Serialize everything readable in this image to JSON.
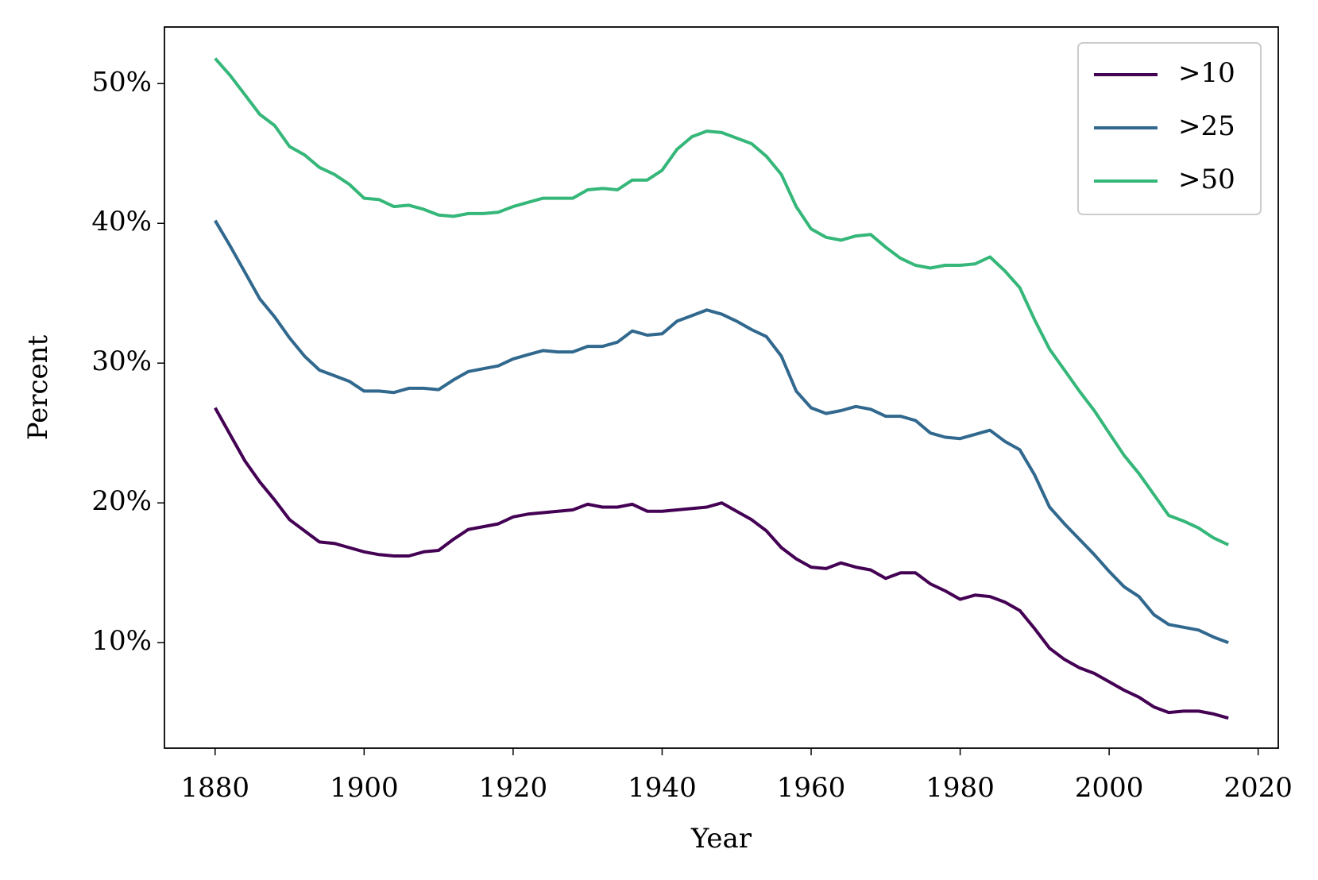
{
  "chart_data": {
    "type": "line",
    "xlabel": "Year",
    "ylabel": "Percent",
    "x": [
      1880,
      1882,
      1884,
      1886,
      1888,
      1890,
      1892,
      1894,
      1896,
      1898,
      1900,
      1902,
      1904,
      1906,
      1908,
      1910,
      1912,
      1914,
      1916,
      1918,
      1920,
      1922,
      1924,
      1926,
      1928,
      1930,
      1932,
      1934,
      1936,
      1938,
      1940,
      1942,
      1944,
      1946,
      1948,
      1950,
      1952,
      1954,
      1956,
      1958,
      1960,
      1962,
      1964,
      1966,
      1968,
      1970,
      1972,
      1974,
      1976,
      1978,
      1980,
      1982,
      1984,
      1986,
      1988,
      1990,
      1992,
      1994,
      1996,
      1998,
      2000,
      2002,
      2004,
      2006,
      2008,
      2010,
      2012,
      2014,
      2016
    ],
    "series": [
      {
        "name": ">10",
        "color": "#440154",
        "values": [
          26.8,
          24.9,
          23.0,
          21.5,
          20.2,
          18.8,
          18.0,
          17.2,
          17.1,
          16.8,
          16.5,
          16.3,
          16.2,
          16.2,
          16.5,
          16.6,
          17.4,
          18.1,
          18.3,
          18.5,
          19.0,
          19.2,
          19.3,
          19.4,
          19.5,
          19.9,
          19.7,
          19.7,
          19.9,
          19.4,
          19.4,
          19.5,
          19.6,
          19.7,
          20.0,
          19.4,
          18.8,
          18.0,
          16.8,
          16.0,
          15.4,
          15.3,
          15.7,
          15.4,
          15.2,
          14.6,
          15.0,
          15.0,
          14.2,
          13.7,
          13.1,
          13.4,
          13.3,
          12.9,
          12.3,
          11.0,
          9.6,
          8.8,
          8.2,
          7.8,
          7.2,
          6.6,
          6.1,
          5.4,
          5.0,
          5.1,
          5.1,
          4.9,
          4.6
        ]
      },
      {
        "name": ">25",
        "color": "#31688e",
        "values": [
          40.2,
          38.4,
          36.5,
          34.6,
          33.3,
          31.8,
          30.5,
          29.5,
          29.1,
          28.7,
          28.0,
          28.0,
          27.9,
          28.2,
          28.2,
          28.1,
          28.8,
          29.4,
          29.6,
          29.8,
          30.3,
          30.6,
          30.9,
          30.8,
          30.8,
          31.2,
          31.2,
          31.5,
          32.3,
          32.0,
          32.1,
          33.0,
          33.4,
          33.8,
          33.5,
          33.0,
          32.4,
          31.9,
          30.5,
          28.0,
          26.8,
          26.4,
          26.6,
          26.9,
          26.7,
          26.2,
          26.2,
          25.9,
          25.0,
          24.7,
          24.6,
          24.9,
          25.2,
          24.4,
          23.8,
          22.0,
          19.7,
          18.5,
          17.4,
          16.3,
          15.1,
          14.0,
          13.3,
          12.0,
          11.3,
          11.1,
          10.9,
          10.4,
          10.0
        ]
      },
      {
        "name": ">50",
        "color": "#35b779",
        "values": [
          51.8,
          50.6,
          49.2,
          47.8,
          47.0,
          45.5,
          44.9,
          44.0,
          43.5,
          42.8,
          41.8,
          41.7,
          41.2,
          41.3,
          41.0,
          40.6,
          40.5,
          40.7,
          40.7,
          40.8,
          41.2,
          41.5,
          41.8,
          41.8,
          41.8,
          42.4,
          42.5,
          42.4,
          43.1,
          43.1,
          43.8,
          45.3,
          46.2,
          46.6,
          46.5,
          46.1,
          45.7,
          44.8,
          43.5,
          41.2,
          39.6,
          39.0,
          38.8,
          39.1,
          39.2,
          38.3,
          37.5,
          37.0,
          36.8,
          37.0,
          37.0,
          37.1,
          37.6,
          36.6,
          35.4,
          33.1,
          31.0,
          29.5,
          28.0,
          26.6,
          25.0,
          23.4,
          22.1,
          20.6,
          19.1,
          18.7,
          18.2,
          17.5,
          17.0
        ]
      }
    ],
    "xlim": [
      1873.2,
      2022.7
    ],
    "xticks": [
      1880,
      1900,
      1920,
      1940,
      1960,
      1980,
      2000,
      2020
    ],
    "ylim": [
      2.45,
      54.05
    ],
    "yticks": [
      {
        "value": 10,
        "label": "10%"
      },
      {
        "value": 20,
        "label": "20%"
      },
      {
        "value": 30,
        "label": "30%"
      },
      {
        "value": 40,
        "label": "40%"
      },
      {
        "value": 50,
        "label": "50%"
      }
    ],
    "grid": false,
    "legend": "upper right"
  }
}
